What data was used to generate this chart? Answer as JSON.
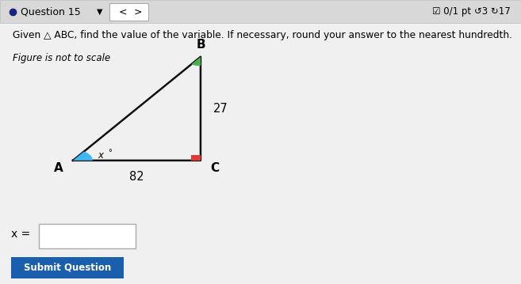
{
  "bg_color": "#f0f0f0",
  "white_panel_color": "#f5f5f5",
  "header_bg": "#d8d8d8",
  "title_text": "Given △ ABC, find the value of the variable. If necessary, round your answer to the nearest hundredth.",
  "subtitle_text": "Figure is not to scale",
  "header_text": "Question 15",
  "header_right": "☑ 0/1 pt ↺3 ↻17",
  "label_A": "A",
  "label_B": "B",
  "label_C": "C",
  "side_BC": "27",
  "side_AC": "82",
  "angle_label": "x",
  "angle_color_A": "#3db8f5",
  "angle_color_B": "#4caf50",
  "right_angle_color": "#e53935",
  "line_color": "#111111",
  "input_box_label": "x =",
  "button_text": "Submit Question",
  "button_color": "#1a5fad",
  "button_text_color": "#ffffff",
  "A": [
    0.14,
    0.435
  ],
  "B": [
    0.385,
    0.8
  ],
  "C": [
    0.385,
    0.435
  ]
}
